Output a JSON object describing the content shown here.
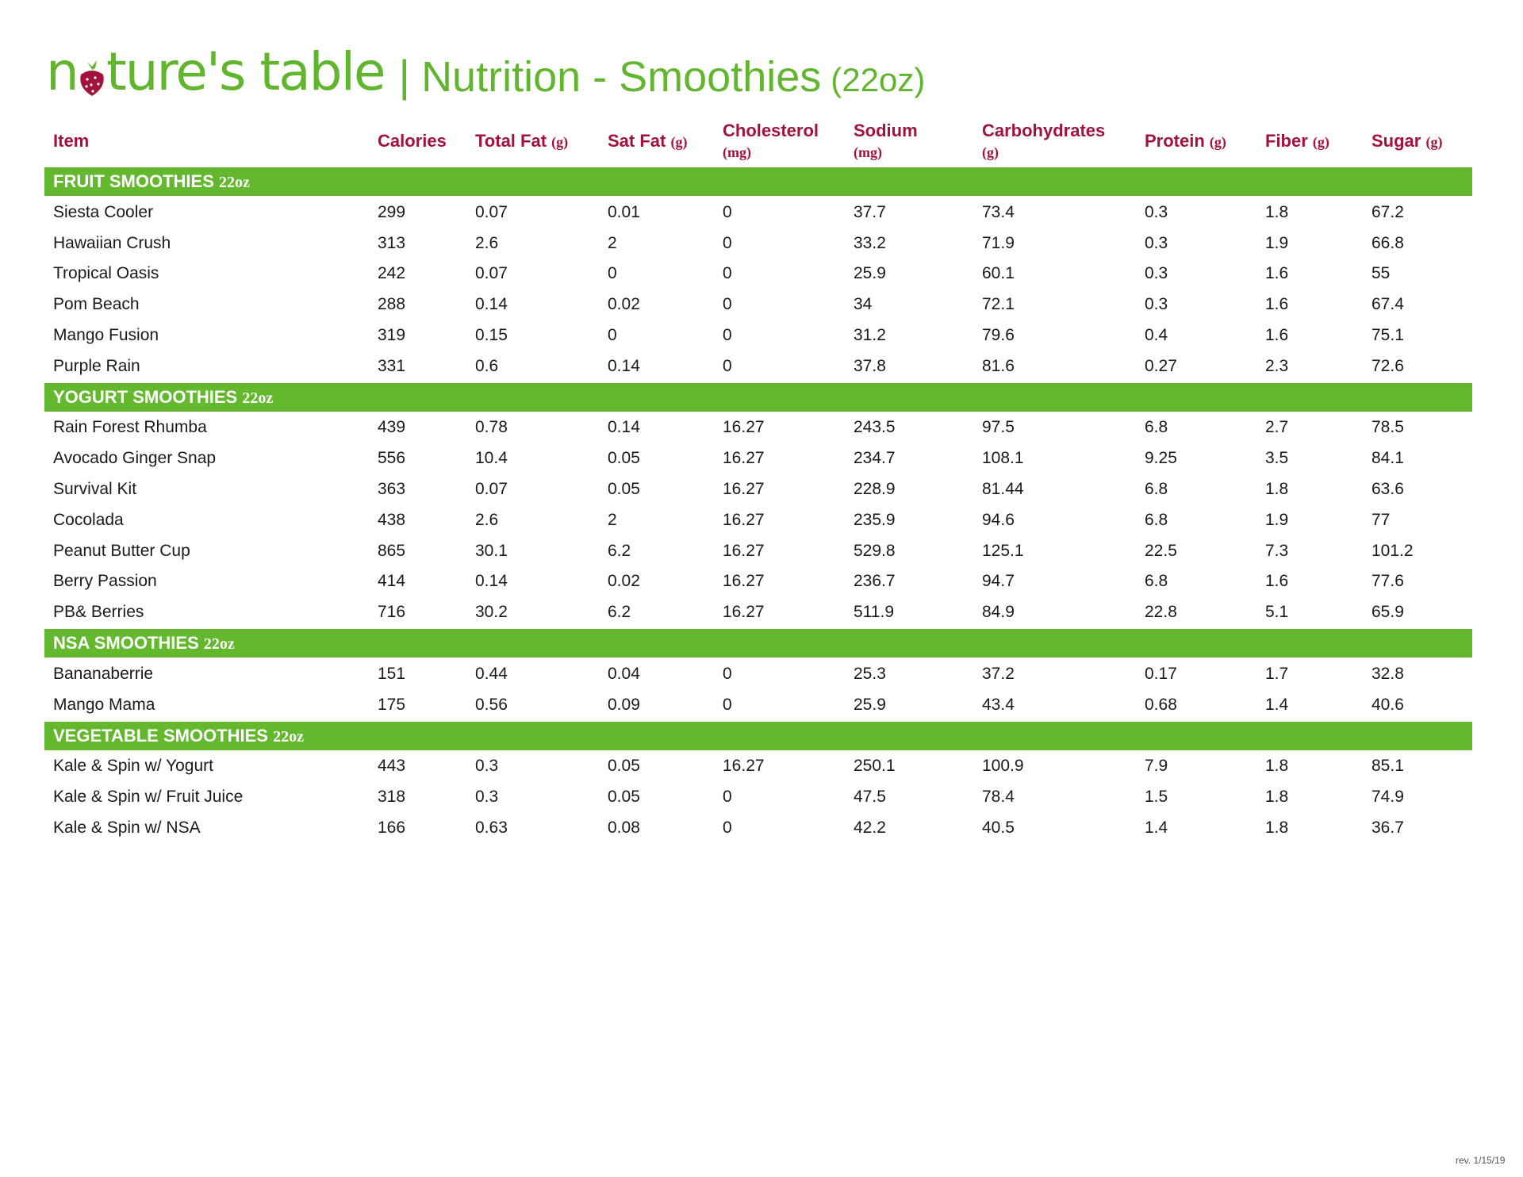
{
  "header": {
    "logo_text": "nature's table",
    "separator": "|",
    "title": "Nutrition - Smoothies",
    "size": "(22oz)",
    "brand_green": "#62b52e",
    "accent_red": "#a3123c"
  },
  "columns": [
    {
      "label": "Item",
      "unit": ""
    },
    {
      "label": "Calories",
      "unit": ""
    },
    {
      "label": "Total Fat",
      "unit": "(g)"
    },
    {
      "label": "Sat Fat",
      "unit": "(g)"
    },
    {
      "label": "Cholesterol",
      "unit": "(mg)"
    },
    {
      "label": "Sodium",
      "unit": "(mg)"
    },
    {
      "label": "Carbohydrates",
      "unit": "(g)"
    },
    {
      "label": "Protein",
      "unit": "(g)"
    },
    {
      "label": "Fiber",
      "unit": "(g)"
    },
    {
      "label": "Sugar",
      "unit": "(g)"
    }
  ],
  "sections": [
    {
      "name": "FRUIT SMOOTHIES",
      "size": "22oz",
      "rows": [
        [
          "Siesta Cooler",
          "299",
          "0.07",
          "0.01",
          "0",
          "37.7",
          "73.4",
          "0.3",
          "1.8",
          "67.2"
        ],
        [
          "Hawaiian Crush",
          "313",
          "2.6",
          "2",
          "0",
          "33.2",
          "71.9",
          "0.3",
          "1.9",
          "66.8"
        ],
        [
          "Tropical Oasis",
          "242",
          "0.07",
          "0",
          "0",
          "25.9",
          "60.1",
          "0.3",
          "1.6",
          "55"
        ],
        [
          "Pom Beach",
          "288",
          "0.14",
          "0.02",
          "0",
          "34",
          "72.1",
          "0.3",
          "1.6",
          "67.4"
        ],
        [
          "Mango Fusion",
          "319",
          "0.15",
          "0",
          "0",
          "31.2",
          "79.6",
          "0.4",
          "1.6",
          "75.1"
        ],
        [
          "Purple Rain",
          "331",
          "0.6",
          "0.14",
          "0",
          "37.8",
          "81.6",
          "0.27",
          "2.3",
          "72.6"
        ]
      ]
    },
    {
      "name": "YOGURT SMOOTHIES",
      "size": "22oz",
      "rows": [
        [
          "Rain Forest Rhumba",
          "439",
          "0.78",
          "0.14",
          "16.27",
          "243.5",
          "97.5",
          "6.8",
          "2.7",
          "78.5"
        ],
        [
          "Avocado Ginger Snap",
          "556",
          "10.4",
          "0.05",
          "16.27",
          "234.7",
          "108.1",
          "9.25",
          "3.5",
          "84.1"
        ],
        [
          "Survival Kit",
          "363",
          "0.07",
          "0.05",
          "16.27",
          "228.9",
          "81.44",
          "6.8",
          "1.8",
          "63.6"
        ],
        [
          "Cocolada",
          "438",
          "2.6",
          "2",
          "16.27",
          "235.9",
          "94.6",
          "6.8",
          "1.9",
          "77"
        ],
        [
          "Peanut Butter Cup",
          "865",
          "30.1",
          "6.2",
          "16.27",
          "529.8",
          "125.1",
          "22.5",
          "7.3",
          "101.2"
        ],
        [
          "Berry Passion",
          "414",
          "0.14",
          "0.02",
          "16.27",
          "236.7",
          "94.7",
          "6.8",
          "1.6",
          "77.6"
        ],
        [
          "PB& Berries",
          "716",
          "30.2",
          "6.2",
          "16.27",
          "511.9",
          "84.9",
          "22.8",
          "5.1",
          "65.9"
        ]
      ]
    },
    {
      "name": "NSA SMOOTHIES",
      "size": "22oz",
      "rows": [
        [
          "Bananaberrie",
          "151",
          "0.44",
          "0.04",
          "0",
          "25.3",
          "37.2",
          "0.17",
          "1.7",
          "32.8"
        ],
        [
          "Mango Mama",
          "175",
          "0.56",
          "0.09",
          "0",
          "25.9",
          "43.4",
          "0.68",
          "1.4",
          "40.6"
        ]
      ]
    },
    {
      "name": "VEGETABLE SMOOTHIES",
      "size": "22oz",
      "rows": [
        [
          "Kale & Spin w/ Yogurt",
          "443",
          "0.3",
          "0.05",
          "16.27",
          "250.1",
          "100.9",
          "7.9",
          "1.8",
          "85.1"
        ],
        [
          "Kale & Spin w/ Fruit Juice",
          "318",
          "0.3",
          "0.05",
          "0",
          "47.5",
          "78.4",
          "1.5",
          "1.8",
          "74.9"
        ],
        [
          "Kale & Spin w/ NSA",
          "166",
          "0.63",
          "0.08",
          "0",
          "42.2",
          "40.5",
          "1.4",
          "1.8",
          "36.7"
        ]
      ]
    }
  ],
  "footer": {
    "revision": "rev. 1/15/19"
  }
}
